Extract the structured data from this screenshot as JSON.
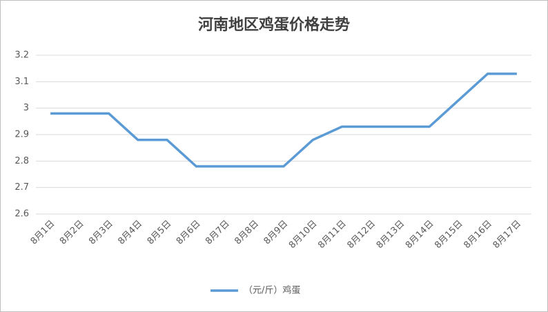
{
  "chart_data": {
    "type": "line",
    "title": "河南地区鸡蛋价格走势",
    "categories": [
      "8月1日",
      "8月2日",
      "8月3日",
      "8月4日",
      "8月5日",
      "8月6日",
      "8月7日",
      "8月8日",
      "8月9日",
      "8月10日",
      "8月11日",
      "8月12日",
      "8月13日",
      "8月14日",
      "8月15日",
      "8月16日",
      "8月17日"
    ],
    "series": [
      {
        "name": "（元/斤）鸡蛋",
        "color": "#5b9bd5",
        "values": [
          2.98,
          2.98,
          2.98,
          2.88,
          2.88,
          2.78,
          2.78,
          2.78,
          2.78,
          2.88,
          2.93,
          2.93,
          2.93,
          2.93,
          3.03,
          3.13,
          3.13
        ]
      }
    ],
    "ylim": [
      2.6,
      3.2
    ],
    "yticks": [
      2.6,
      2.7,
      2.8,
      2.9,
      3,
      3.1,
      3.2
    ],
    "grid": true,
    "legend": "bottom"
  }
}
